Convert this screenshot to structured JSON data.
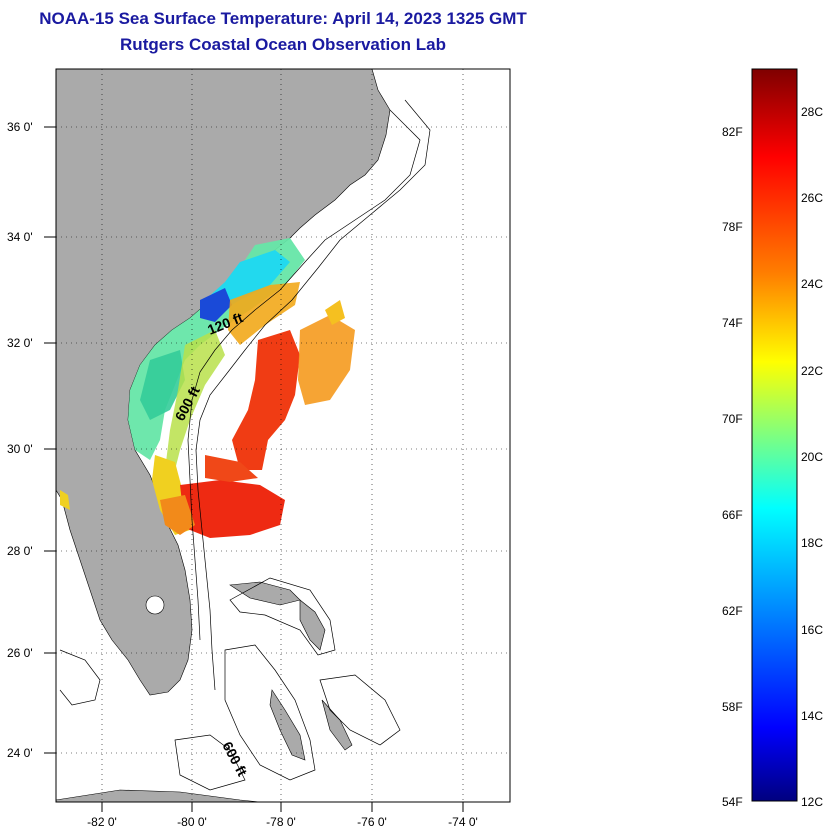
{
  "title_line1": "NOAA-15 Sea Surface Temperature:  April 14, 2023 1325 GMT",
  "title_line2": "Rutgers Coastal Ocean Observation Lab",
  "map": {
    "lat_ticks": [
      "36 0'",
      "34 0'",
      "32 0'",
      "30 0'",
      "28 0'",
      "26 0'",
      "24 0'"
    ],
    "lon_ticks": [
      "-82 0'",
      "-80 0'",
      "-78 0'",
      "-76 0'",
      "-74 0'"
    ],
    "contour_labels": [
      "120 ft",
      "600 ft",
      "600 ft"
    ],
    "colors": {
      "land": "#aaaaaa",
      "ocean": "#ffffff",
      "grid": "#000000"
    }
  },
  "colorbar": {
    "fahrenheit_labels": [
      "82F",
      "78F",
      "74F",
      "70F",
      "66F",
      "62F",
      "58F",
      "54F"
    ],
    "celsius_labels": [
      "28C",
      "26C",
      "24C",
      "22C",
      "20C",
      "18C",
      "16C",
      "14C",
      "12C"
    ],
    "gradient": [
      "#00007f",
      "#0000ff",
      "#007fff",
      "#00ffff",
      "#7fff7f",
      "#ffff00",
      "#ff7f00",
      "#ff0000",
      "#7f0000"
    ]
  }
}
